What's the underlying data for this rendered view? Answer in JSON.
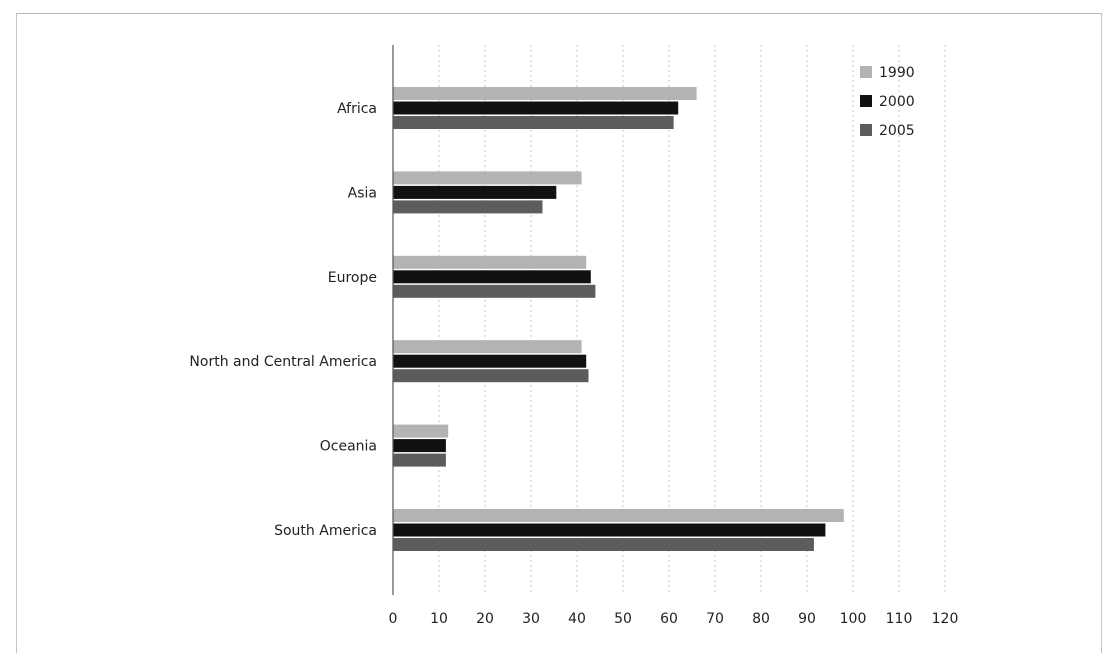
{
  "chart_data": {
    "type": "bar",
    "orientation": "horizontal",
    "categories": [
      "Africa",
      "Asia",
      "Europe",
      "North and Central America",
      "Oceania",
      "South America"
    ],
    "series": [
      {
        "name": "1990",
        "color": "#b3b3b3",
        "values": [
          66,
          41,
          42,
          41,
          12,
          98
        ]
      },
      {
        "name": "2000",
        "color": "#111111",
        "values": [
          62,
          35.5,
          43,
          42,
          11.5,
          94
        ]
      },
      {
        "name": "2005",
        "color": "#5c5c5c",
        "values": [
          61,
          32.5,
          44,
          42.5,
          11.5,
          91.5
        ]
      }
    ],
    "xlim": [
      0,
      120
    ],
    "xticks": [
      0,
      10,
      20,
      30,
      40,
      50,
      60,
      70,
      80,
      90,
      100,
      110,
      120
    ],
    "grid": "vertical",
    "legend": "top-right",
    "title": "",
    "xlabel": "",
    "ylabel": ""
  }
}
